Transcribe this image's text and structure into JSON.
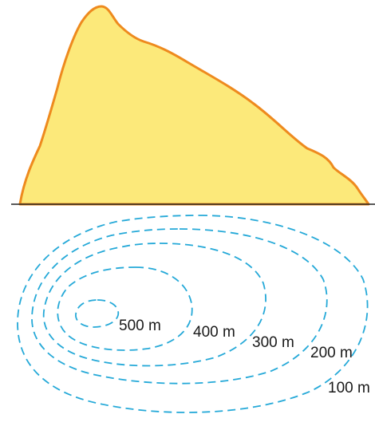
{
  "colors": {
    "mountain_fill": "#fce97a",
    "mountain_outline": "#ee8a1e",
    "ground_line": "#222222",
    "contour": "#25a9d8"
  },
  "contours": [
    {
      "label": "500 m"
    },
    {
      "label": "400 m"
    },
    {
      "label": "300 m"
    },
    {
      "label": "200 m"
    },
    {
      "label": "100 m"
    }
  ]
}
